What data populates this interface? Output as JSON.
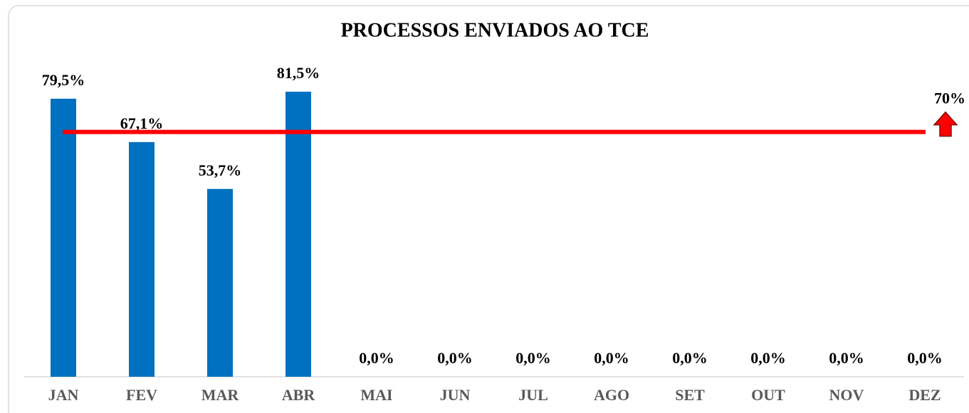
{
  "chart_data": {
    "type": "bar",
    "title": "PROCESSOS ENVIADOS AO TCE",
    "categories": [
      "JAN",
      "FEV",
      "MAR",
      "ABR",
      "MAI",
      "JUN",
      "JUL",
      "AGO",
      "SET",
      "OUT",
      "NOV",
      "DEZ"
    ],
    "values": [
      79.5,
      67.1,
      53.7,
      81.5,
      0,
      0,
      0,
      0,
      0,
      0,
      0,
      0
    ],
    "value_labels": [
      "79,5%",
      "67,1%",
      "53,7%",
      "81,5%",
      "0,0%",
      "0,0%",
      "0,0%",
      "0,0%",
      "0,0%",
      "0,0%",
      "0,0%",
      "0,0%"
    ],
    "color": "#0070c0",
    "ylim": [
      0,
      100
    ],
    "target": 70,
    "target_label": "70%",
    "target_color": "#ff0000"
  }
}
